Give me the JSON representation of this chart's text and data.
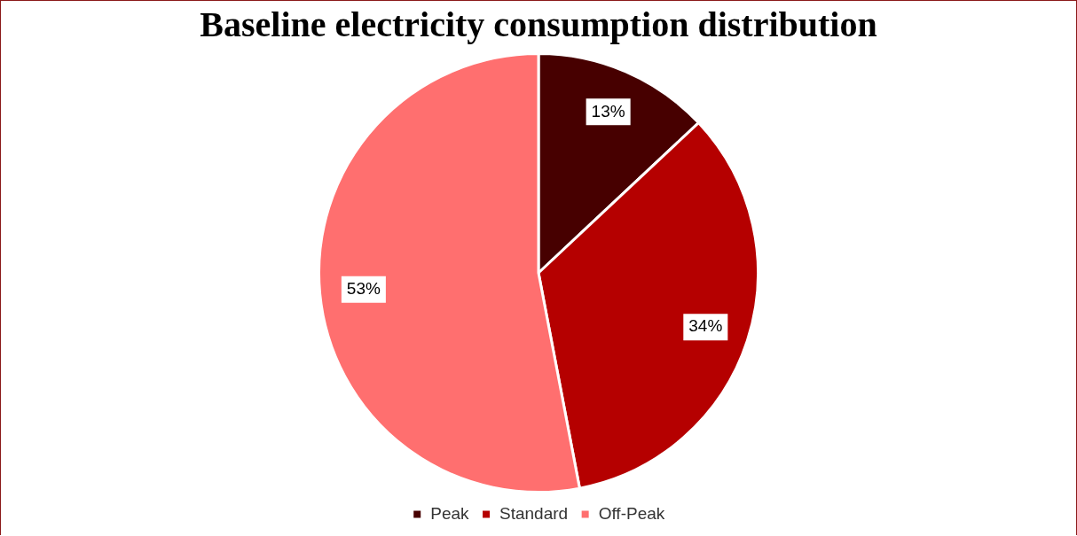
{
  "chart_data": {
    "type": "pie",
    "title": "Baseline electricity consumption distribution",
    "categories": [
      "Peak",
      "Standard",
      "Off-Peak"
    ],
    "values": [
      13,
      34,
      53
    ],
    "colors": [
      "#470000",
      "#b50000",
      "#ff6f6f"
    ],
    "value_labels": [
      "13%",
      "34%",
      "53%"
    ],
    "legend": "bottom"
  }
}
